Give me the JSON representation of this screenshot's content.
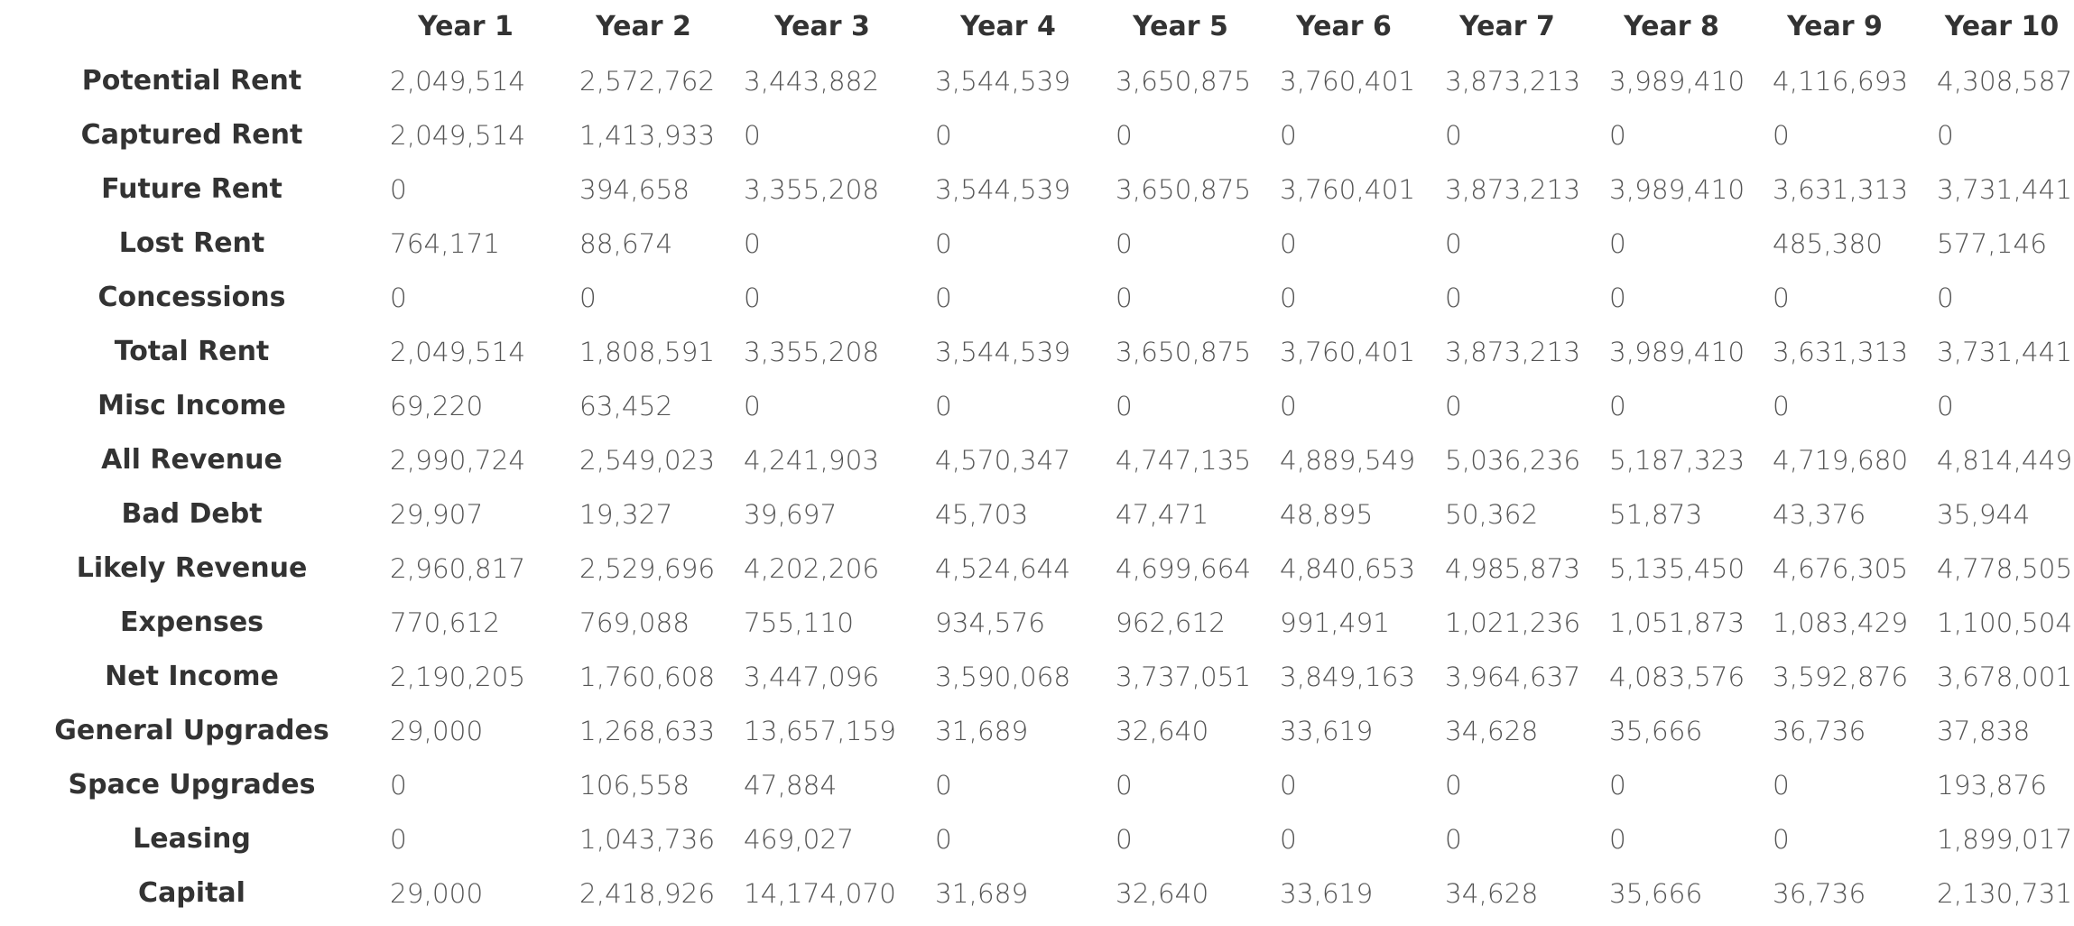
{
  "table": {
    "columns": [
      "Year 1",
      "Year 2",
      "Year 3",
      "Year 4",
      "Year 5",
      "Year 6",
      "Year 7",
      "Year 8",
      "Year 9",
      "Year 10"
    ],
    "rows": [
      {
        "label": "Potential Rent",
        "values": [
          "2,049,514",
          "2,572,762",
          "3,443,882",
          "3,544,539",
          "3,650,875",
          "3,760,401",
          "3,873,213",
          "3,989,410",
          "4,116,693",
          "4,308,587"
        ]
      },
      {
        "label": "Captured Rent",
        "values": [
          "2,049,514",
          "1,413,933",
          "0",
          "0",
          "0",
          "0",
          "0",
          "0",
          "0",
          "0"
        ]
      },
      {
        "label": "Future Rent",
        "values": [
          "0",
          "394,658",
          "3,355,208",
          "3,544,539",
          "3,650,875",
          "3,760,401",
          "3,873,213",
          "3,989,410",
          "3,631,313",
          "3,731,441"
        ]
      },
      {
        "label": "Lost Rent",
        "values": [
          "764,171",
          "88,674",
          "0",
          "0",
          "0",
          "0",
          "0",
          "0",
          "485,380",
          "577,146"
        ]
      },
      {
        "label": "Concessions",
        "values": [
          "0",
          "0",
          "0",
          "0",
          "0",
          "0",
          "0",
          "0",
          "0",
          "0"
        ]
      },
      {
        "label": "Total Rent",
        "values": [
          "2,049,514",
          "1,808,591",
          "3,355,208",
          "3,544,539",
          "3,650,875",
          "3,760,401",
          "3,873,213",
          "3,989,410",
          "3,631,313",
          "3,731,441"
        ]
      },
      {
        "label": "Misc Income",
        "values": [
          "69,220",
          "63,452",
          "0",
          "0",
          "0",
          "0",
          "0",
          "0",
          "0",
          "0"
        ]
      },
      {
        "label": "All Revenue",
        "values": [
          "2,990,724",
          "2,549,023",
          "4,241,903",
          "4,570,347",
          "4,747,135",
          "4,889,549",
          "5,036,236",
          "5,187,323",
          "4,719,680",
          "4,814,449"
        ]
      },
      {
        "label": "Bad Debt",
        "values": [
          "29,907",
          "19,327",
          "39,697",
          "45,703",
          "47,471",
          "48,895",
          "50,362",
          "51,873",
          "43,376",
          "35,944"
        ]
      },
      {
        "label": "Likely Revenue",
        "values": [
          "2,960,817",
          "2,529,696",
          "4,202,206",
          "4,524,644",
          "4,699,664",
          "4,840,653",
          "4,985,873",
          "5,135,450",
          "4,676,305",
          "4,778,505"
        ]
      },
      {
        "label": "Expenses",
        "values": [
          "770,612",
          "769,088",
          "755,110",
          "934,576",
          "962,612",
          "991,491",
          "1,021,236",
          "1,051,873",
          "1,083,429",
          "1,100,504"
        ]
      },
      {
        "label": "Net Income",
        "values": [
          "2,190,205",
          "1,760,608",
          "3,447,096",
          "3,590,068",
          "3,737,051",
          "3,849,163",
          "3,964,637",
          "4,083,576",
          "3,592,876",
          "3,678,001"
        ]
      },
      {
        "label": "General Upgrades",
        "values": [
          "29,000",
          "1,268,633",
          "13,657,159",
          "31,689",
          "32,640",
          "33,619",
          "34,628",
          "35,666",
          "36,736",
          "37,838"
        ]
      },
      {
        "label": "Space Upgrades",
        "values": [
          "0",
          "106,558",
          "47,884",
          "0",
          "0",
          "0",
          "0",
          "0",
          "0",
          "193,876"
        ]
      },
      {
        "label": "Leasing",
        "values": [
          "0",
          "1,043,736",
          "469,027",
          "0",
          "0",
          "0",
          "0",
          "0",
          "0",
          "1,899,017"
        ]
      },
      {
        "label": "Capital",
        "values": [
          "29,000",
          "2,418,926",
          "14,174,070",
          "31,689",
          "32,640",
          "33,619",
          "34,628",
          "35,666",
          "36,736",
          "2,130,731"
        ]
      }
    ]
  }
}
